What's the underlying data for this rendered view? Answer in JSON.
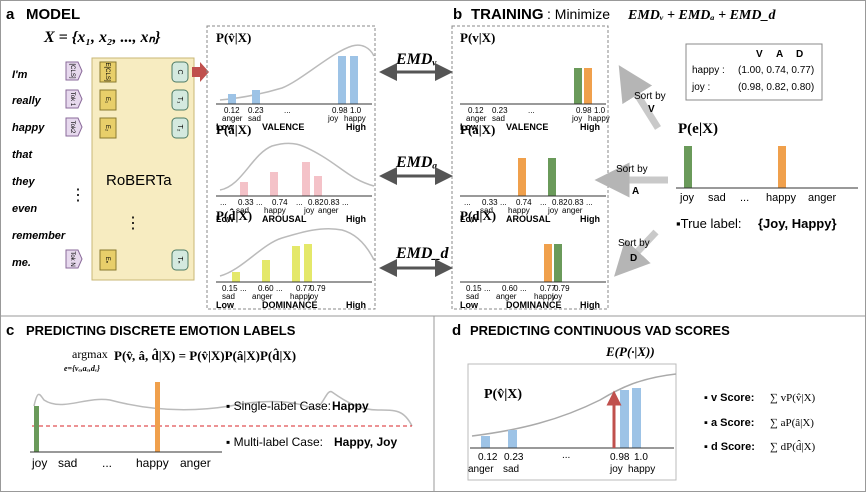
{
  "panels": {
    "a": {
      "letter": "a",
      "title": "MODEL",
      "x_equation": "X = {x₁, x₂, ..., xₙ}",
      "words": [
        "I'm",
        "really",
        "happy",
        "that",
        "they",
        "even",
        "remember",
        "me."
      ],
      "input_tokens": [
        "[CLS]",
        "Tok 1",
        "Tok2",
        "Tok N"
      ],
      "emb_tokens": [
        "E[CLS]",
        "E₁",
        "E₂",
        "Eₙ"
      ],
      "out_tokens": [
        "C",
        "T₁",
        "T₂",
        "Tₙ"
      ],
      "model_name": "RoBERTa",
      "dots": "⋮"
    },
    "b": {
      "letter": "b",
      "title_bold": "TRAINING",
      "title_rest": ": Minimize",
      "objective": "EMDᵥ + EMDₐ + EMD_d",
      "vad_table": {
        "header": [
          "V",
          "A",
          "D"
        ],
        "rows": [
          {
            "label": "happy :",
            "values": "(1.00, 0.74, 0.77)"
          },
          {
            "label": "joy :",
            "values": "(0.98, 0.82, 0.80)"
          }
        ]
      },
      "sort_labels": [
        [
          "Sort by",
          "V"
        ],
        [
          "Sort by",
          "A"
        ],
        [
          "Sort by",
          "D"
        ]
      ],
      "pe_title": "P(e|X)",
      "pe_categories": [
        "joy",
        "sad",
        "...",
        "happy",
        "anger"
      ],
      "true_label_prefix": "▪True label: ",
      "true_label_value": "{Joy, Happy}"
    },
    "c": {
      "letter": "c",
      "title": "PREDICTING DISCRETE EMOTION LABELS",
      "argmax": "argmax",
      "argmax_sub": "e={vₑ,aₑ,dₑ}",
      "equation": "P(v̂, â, d̂|X) = P(v̂|X)P(â|X)P(d̂|X)",
      "categories": [
        "joy",
        "sad",
        "...",
        "happy",
        "anger"
      ],
      "single_prefix": "▪ Single-label Case: ",
      "single_value": "Happy",
      "multi_prefix": "▪ Multi-label Case: ",
      "multi_value": "Happy, Joy"
    },
    "d": {
      "letter": "d",
      "title": "PREDICTING CONTINUOUS VAD SCORES",
      "expectation": "E(P(·|X))",
      "dist_title": "P(v̂|X)",
      "score_labels": [
        "▪ v Score: ",
        "▪ a Score: ",
        "▪ d Score: "
      ],
      "score_formulas": [
        "∑ vP(v̂|X)",
        "∑ aP(â|X)",
        "∑ dP(d̂|X)"
      ],
      "axis_vals": [
        "0.12",
        "0.23",
        "...",
        "0.98",
        "1.0"
      ],
      "axis_cats": [
        "anger",
        "sad",
        "joy",
        "happy"
      ]
    }
  },
  "emd_labels": [
    "EMDᵥ",
    "EMDₐ",
    "EMD_d"
  ],
  "pred_dists": [
    {
      "title": "P(v̂|X)",
      "axis": "VALENCE",
      "low": "Low",
      "high": "High",
      "vals": [
        "0.12",
        "0.23",
        "...",
        "0.98",
        "1.0"
      ],
      "cats": [
        "anger",
        "sad",
        "joy",
        "happy"
      ]
    },
    {
      "title": "P(â|X)",
      "axis": "AROUSAL",
      "low": "Low",
      "high": "High",
      "vals": [
        "...",
        "0.33",
        "...",
        "0.74",
        "...",
        "0.82",
        "0.83",
        "..."
      ],
      "cats": [
        "sad",
        "happy",
        "joy",
        "anger"
      ]
    },
    {
      "title": "P(d̂|X)",
      "axis": "DOMINANCE",
      "low": "Low",
      "high": "High",
      "vals": [
        "0.15",
        "...",
        "0.60",
        "...",
        "0.77",
        "0.79"
      ],
      "cats": [
        "sad",
        "anger",
        "happy",
        "joy"
      ]
    }
  ],
  "target_dists": [
    {
      "title": "P(v|X)",
      "axis": "VALENCE",
      "low": "Low",
      "high": "High",
      "vals": [
        "0.12",
        "0.23",
        "...",
        "0.98",
        "1.0"
      ],
      "cats": [
        "anger",
        "sad",
        "joy",
        "happy"
      ]
    },
    {
      "title": "P(a|X)",
      "axis": "AROUSAL",
      "low": "Low",
      "high": "High",
      "vals": [
        "...",
        "0.33",
        "...",
        "0.74",
        "...",
        "0.82",
        "0.83",
        "..."
      ],
      "cats": [
        "sad",
        "happy",
        "joy",
        "anger"
      ]
    },
    {
      "title": "P(d|X)",
      "axis": "DOMINANCE",
      "low": "Low",
      "high": "High",
      "vals": [
        "0.15",
        "...",
        "0.60",
        "...",
        "0.77",
        "0.79"
      ],
      "cats": [
        "sad",
        "anger",
        "happy",
        "joy"
      ]
    }
  ],
  "colors": {
    "blue": "#9dc3e6",
    "pink": "#f4c2c8",
    "yellow": "#e4e86a",
    "orange": "#f0a04c",
    "green": "#6a9a5a",
    "red_arrow": "#c0504d",
    "red_line": "#d9262a",
    "model_bg": "#f7ecc1",
    "token_bg": "#e8cf6a",
    "input_bg": "#e7d9ee",
    "output_bg": "#d4e9df",
    "gray": "#b5b5b5"
  }
}
